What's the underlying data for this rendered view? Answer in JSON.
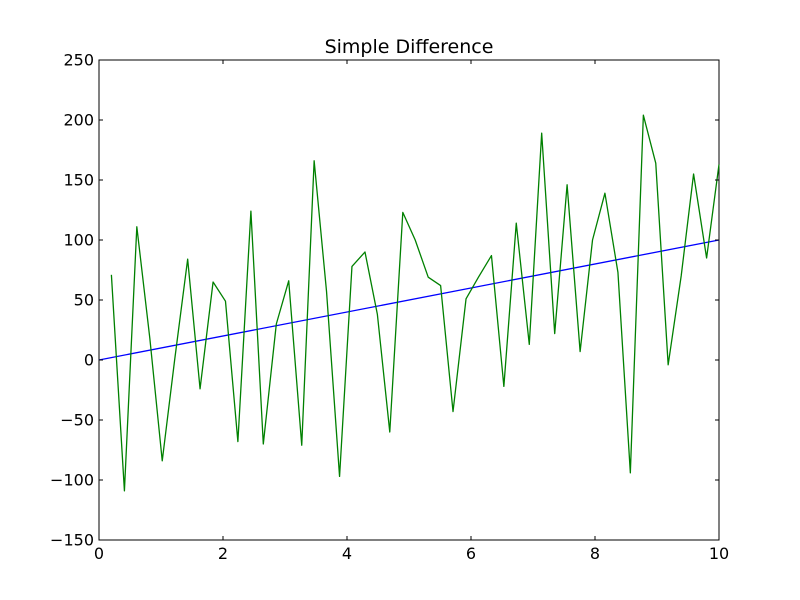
{
  "chart_data": {
    "type": "line",
    "title": "Simple Difference",
    "xlabel": "",
    "ylabel": "",
    "xlim": [
      0,
      10
    ],
    "ylim": [
      -150,
      250
    ],
    "xticks": [
      0,
      2,
      4,
      6,
      8,
      10
    ],
    "xtick_labels": [
      "0",
      "2",
      "4",
      "6",
      "8",
      "10"
    ],
    "yticks": [
      -150,
      -100,
      -50,
      0,
      50,
      100,
      150,
      200,
      250
    ],
    "ytick_labels": [
      "−150",
      "−100",
      "−50",
      "0",
      "50",
      "100",
      "150",
      "200",
      "250"
    ],
    "grid": false,
    "series": [
      {
        "color": "#0000ff",
        "x": [
          0,
          10
        ],
        "y": [
          0,
          100
        ]
      },
      {
        "color": "#008000",
        "x": [
          0.2,
          0.41,
          0.61,
          0.82,
          1.02,
          1.22,
          1.43,
          1.63,
          1.84,
          2.04,
          2.24,
          2.45,
          2.65,
          2.86,
          3.06,
          3.27,
          3.47,
          3.67,
          3.88,
          4.08,
          4.29,
          4.49,
          4.69,
          4.9,
          5.1,
          5.31,
          5.51,
          5.71,
          5.92,
          6.12,
          6.33,
          6.53,
          6.73,
          6.94,
          7.14,
          7.35,
          7.55,
          7.76,
          7.96,
          8.16,
          8.37,
          8.57,
          8.78,
          8.98,
          9.18,
          9.39,
          9.59,
          9.8,
          10.0
        ],
        "y": [
          71,
          -109,
          111,
          18,
          -84,
          0,
          84,
          -24,
          65,
          49,
          -68,
          124,
          -70,
          30,
          66,
          -71,
          166,
          57,
          -97,
          78,
          90,
          38,
          -60,
          123,
          100,
          69,
          62,
          -43,
          51,
          69,
          87,
          -22,
          114,
          13,
          189,
          22,
          146,
          7,
          100,
          139,
          73,
          -94,
          204,
          164,
          -4,
          70,
          155,
          85,
          163
        ]
      }
    ]
  }
}
